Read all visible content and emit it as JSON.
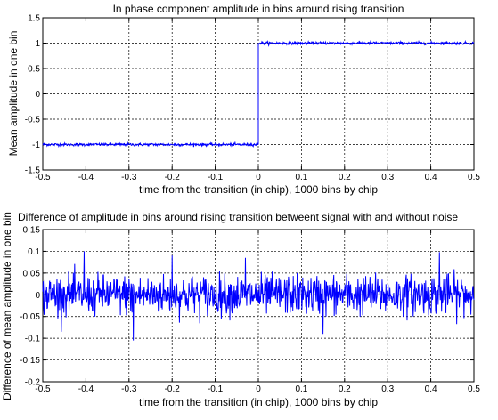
{
  "chart_data": [
    {
      "type": "line",
      "title": "In phase component amplitude in bins around rising transition",
      "xlabel": "time from the transition (in chip), 1000 bins by chip",
      "ylabel": "Mean amplitude in one bin",
      "xlim": [
        -0.5,
        0.5
      ],
      "ylim": [
        -1.5,
        1.5
      ],
      "xticks": [
        "-0.5",
        "-0.4",
        "-0.3",
        "-0.2",
        "-0.1",
        "0",
        "0.1",
        "0.2",
        "0.3",
        "0.4",
        "0.5"
      ],
      "yticks": [
        "1.5",
        "1",
        "0.5",
        "0",
        "-0.5",
        "-1",
        "-1.5"
      ],
      "grid": true,
      "series": [
        {
          "color": "#0000ff",
          "description": "step from about -1 to about 1 at x = 0 with small noise",
          "segments": [
            {
              "x_start": -0.5,
              "x_end": 0.0,
              "mean": -1.0,
              "noise_amplitude": 0.03
            },
            {
              "x_start": 0.0,
              "x_end": 0.5,
              "mean": 1.0,
              "noise_amplitude": 0.03
            }
          ]
        }
      ]
    },
    {
      "type": "line",
      "title": "Difference of amplitude in bins around rising transition betweent signal with and without noise",
      "xlabel": "time from the transition (in chip), 1000 bins by chip",
      "ylabel": "Difference of mean amplitude in one bin",
      "xlim": [
        -0.5,
        0.5
      ],
      "ylim": [
        -0.2,
        0.15
      ],
      "xticks": [
        "-0.5",
        "-0.4",
        "-0.3",
        "-0.2",
        "-0.1",
        "0",
        "0.1",
        "0.2",
        "0.3",
        "0.4",
        "0.5"
      ],
      "yticks": [
        "0.15",
        "0.1",
        "0.05",
        "0",
        "-0.05",
        "-0.1",
        "-0.15",
        "-0.2"
      ],
      "grid": true,
      "series": [
        {
          "color": "#0000ff",
          "description": "noise centered at 0, mostly within +/-0.05, peaks near +0.1 and -0.1",
          "mean": 0.0,
          "noise_amplitude": 0.03,
          "peak_max": 0.1,
          "peak_min": -0.105
        }
      ]
    }
  ]
}
